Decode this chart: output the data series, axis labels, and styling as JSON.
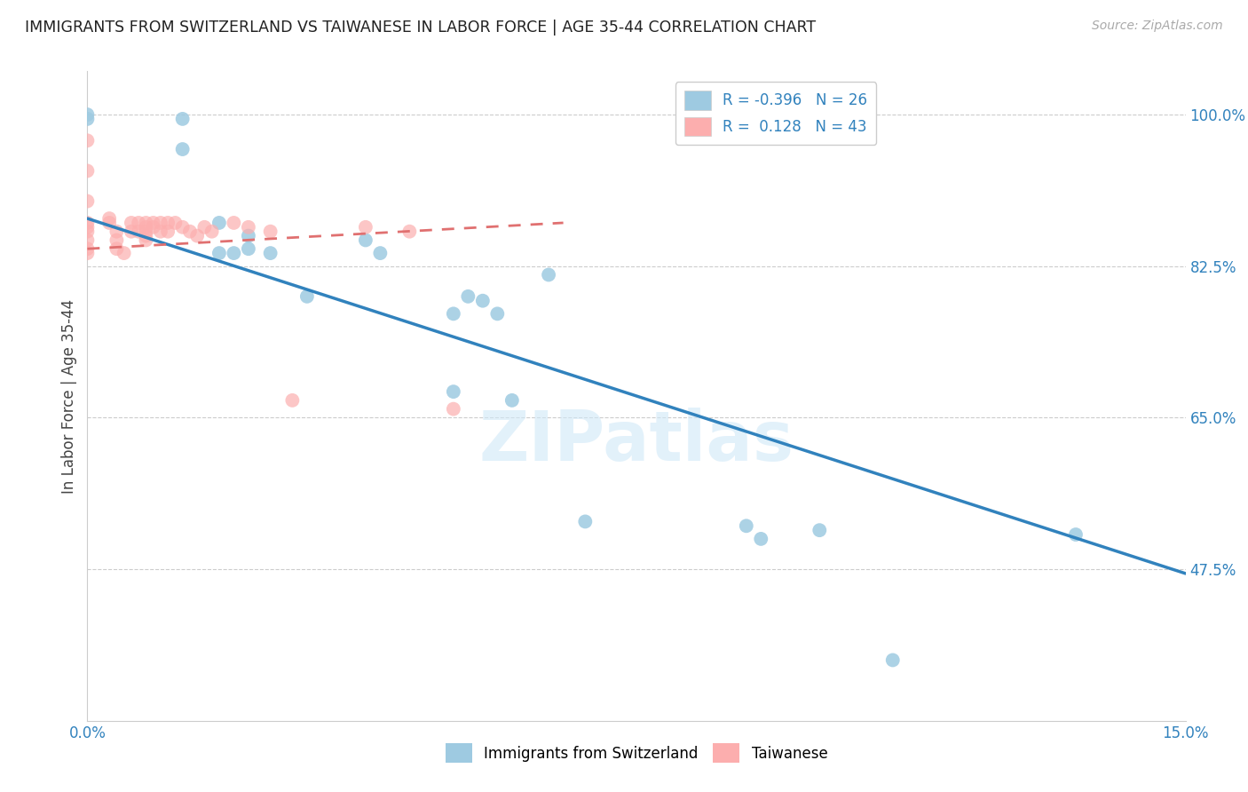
{
  "title": "IMMIGRANTS FROM SWITZERLAND VS TAIWANESE IN LABOR FORCE | AGE 35-44 CORRELATION CHART",
  "source": "Source: ZipAtlas.com",
  "ylabel": "In Labor Force | Age 35-44",
  "xmin": 0.0,
  "xmax": 0.15,
  "ymin": 0.3,
  "ymax": 1.05,
  "yticks": [
    0.475,
    0.65,
    0.825,
    1.0
  ],
  "ytick_labels": [
    "47.5%",
    "65.0%",
    "82.5%",
    "100.0%"
  ],
  "xtick_left_label": "0.0%",
  "xtick_right_label": "15.0%",
  "blue_color": "#9ecae1",
  "pink_color": "#fcaeae",
  "blue_line_color": "#3182bd",
  "pink_line_color": "#e07070",
  "r_blue": -0.396,
  "n_blue": 26,
  "r_pink": 0.128,
  "n_pink": 43,
  "blue_line_x0": 0.0,
  "blue_line_y0": 0.88,
  "blue_line_x1": 0.15,
  "blue_line_y1": 0.47,
  "pink_line_x0": 0.0,
  "pink_line_x1": 0.065,
  "pink_line_y0": 0.845,
  "pink_line_y1": 0.875,
  "blue_points_x": [
    0.0,
    0.0,
    0.013,
    0.013,
    0.018,
    0.018,
    0.02,
    0.022,
    0.022,
    0.025,
    0.03,
    0.038,
    0.04,
    0.05,
    0.05,
    0.052,
    0.054,
    0.056,
    0.058,
    0.063,
    0.068,
    0.09,
    0.092,
    0.1,
    0.11,
    0.135
  ],
  "blue_points_y": [
    1.0,
    0.995,
    0.96,
    0.995,
    0.875,
    0.84,
    0.84,
    0.86,
    0.845,
    0.84,
    0.79,
    0.855,
    0.84,
    0.77,
    0.68,
    0.79,
    0.785,
    0.77,
    0.67,
    0.815,
    0.53,
    0.525,
    0.51,
    0.52,
    0.37,
    0.515
  ],
  "pink_points_x": [
    0.0,
    0.0,
    0.0,
    0.0,
    0.0,
    0.0,
    0.0,
    0.0,
    0.0,
    0.003,
    0.003,
    0.004,
    0.004,
    0.004,
    0.005,
    0.006,
    0.006,
    0.007,
    0.007,
    0.008,
    0.008,
    0.008,
    0.008,
    0.008,
    0.009,
    0.009,
    0.01,
    0.01,
    0.011,
    0.011,
    0.012,
    0.013,
    0.014,
    0.015,
    0.016,
    0.017,
    0.02,
    0.022,
    0.025,
    0.028,
    0.038,
    0.044,
    0.05
  ],
  "pink_points_y": [
    0.97,
    0.935,
    0.9,
    0.875,
    0.87,
    0.865,
    0.855,
    0.845,
    0.84,
    0.88,
    0.875,
    0.865,
    0.855,
    0.845,
    0.84,
    0.875,
    0.865,
    0.875,
    0.865,
    0.875,
    0.87,
    0.865,
    0.86,
    0.855,
    0.875,
    0.87,
    0.875,
    0.865,
    0.875,
    0.865,
    0.875,
    0.87,
    0.865,
    0.86,
    0.87,
    0.865,
    0.875,
    0.87,
    0.865,
    0.67,
    0.87,
    0.865,
    0.66
  ],
  "watermark": "ZIPatlas",
  "legend_label_blue": "Immigrants from Switzerland",
  "legend_label_pink": "Taiwanese"
}
